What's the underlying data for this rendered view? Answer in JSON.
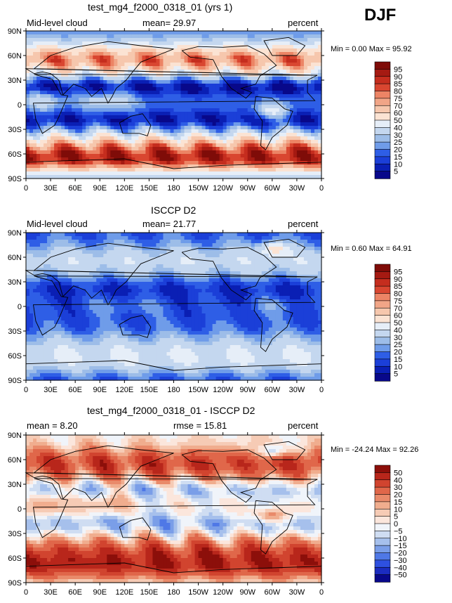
{
  "season_label": "DJF",
  "colors": {
    "seq": [
      "#08088a",
      "#0a1fb4",
      "#1b3fd8",
      "#2e5ee6",
      "#4a7de9",
      "#6f9ce9",
      "#9dbde8",
      "#c4d7ef",
      "#e6eef8",
      "#fbe3d3",
      "#f6c7ad",
      "#f1a587",
      "#ec8465",
      "#e46548",
      "#d94630",
      "#c52d1e",
      "#a51a12",
      "#7f0c08"
    ],
    "diff": [
      "#08088a",
      "#1b2cc0",
      "#2e50e0",
      "#4f78e6",
      "#7a9ee8",
      "#a6c0ec",
      "#cfddf2",
      "#f0f4fa",
      "#fbe6dc",
      "#f6cbb5",
      "#f0ad8e",
      "#e98a6a",
      "#e0674a",
      "#d1442f",
      "#b8261b",
      "#8c0f0a"
    ]
  },
  "panels": [
    {
      "title": "test_mg4_f2000_0318_01 (yrs 1)",
      "left_label": "Mid-level cloud",
      "mean_text": "mean=  29.97",
      "units": "percent",
      "minmax": "Min =    0.00 Max =   95.92",
      "field": "test",
      "lat_ticks": [
        "90N",
        "60N",
        "30N",
        "0",
        "30S",
        "60S",
        "90S"
      ],
      "lon_ticks": [
        "0",
        "30E",
        "60E",
        "90E",
        "120E",
        "150E",
        "180",
        "150W",
        "120W",
        "90W",
        "60W",
        "30W",
        "0"
      ],
      "colorbar": {
        "labels": [
          "95",
          "90",
          "85",
          "80",
          "75",
          "70",
          "60",
          "50",
          "40",
          "30",
          "25",
          "20",
          "15",
          "10",
          "5"
        ],
        "palette": "seq"
      }
    },
    {
      "title": "ISCCP D2",
      "left_label": "Mid-level cloud",
      "mean_text": "mean=  21.77",
      "units": "percent",
      "minmax": "Min =    0.60 Max =   64.91",
      "field": "obs",
      "lat_ticks": [
        "90N",
        "60N",
        "30N",
        "0",
        "30S",
        "60S",
        "90S"
      ],
      "lon_ticks": [
        "0",
        "30E",
        "60E",
        "90E",
        "120E",
        "150E",
        "180",
        "150W",
        "120W",
        "90W",
        "60W",
        "30W",
        "0"
      ],
      "colorbar": {
        "labels": [
          "95",
          "90",
          "85",
          "80",
          "75",
          "70",
          "60",
          "50",
          "40",
          "30",
          "25",
          "20",
          "15",
          "10",
          "5"
        ],
        "palette": "seq"
      }
    },
    {
      "title": "test_mg4_f2000_0318_01 - ISCCP D2",
      "left_label": "mean =   8.20",
      "mean_text": "rmse =   15.81",
      "units": "percent",
      "minmax": "Min = -24.24 Max =   92.26",
      "field": "diff",
      "lat_ticks": [
        "90N",
        "60N",
        "30N",
        "0",
        "30S",
        "60S",
        "90S"
      ],
      "lon_ticks": [
        "0",
        "30E",
        "60E",
        "90E",
        "120E",
        "150E",
        "180",
        "150W",
        "120W",
        "90W",
        "60W",
        "30W",
        "0"
      ],
      "colorbar": {
        "labels": [
          "50",
          "40",
          "30",
          "20",
          "15",
          "10",
          "5",
          "0",
          "−5",
          "−10",
          "−15",
          "−20",
          "−30",
          "−40",
          "−50"
        ],
        "palette": "diff"
      }
    }
  ]
}
